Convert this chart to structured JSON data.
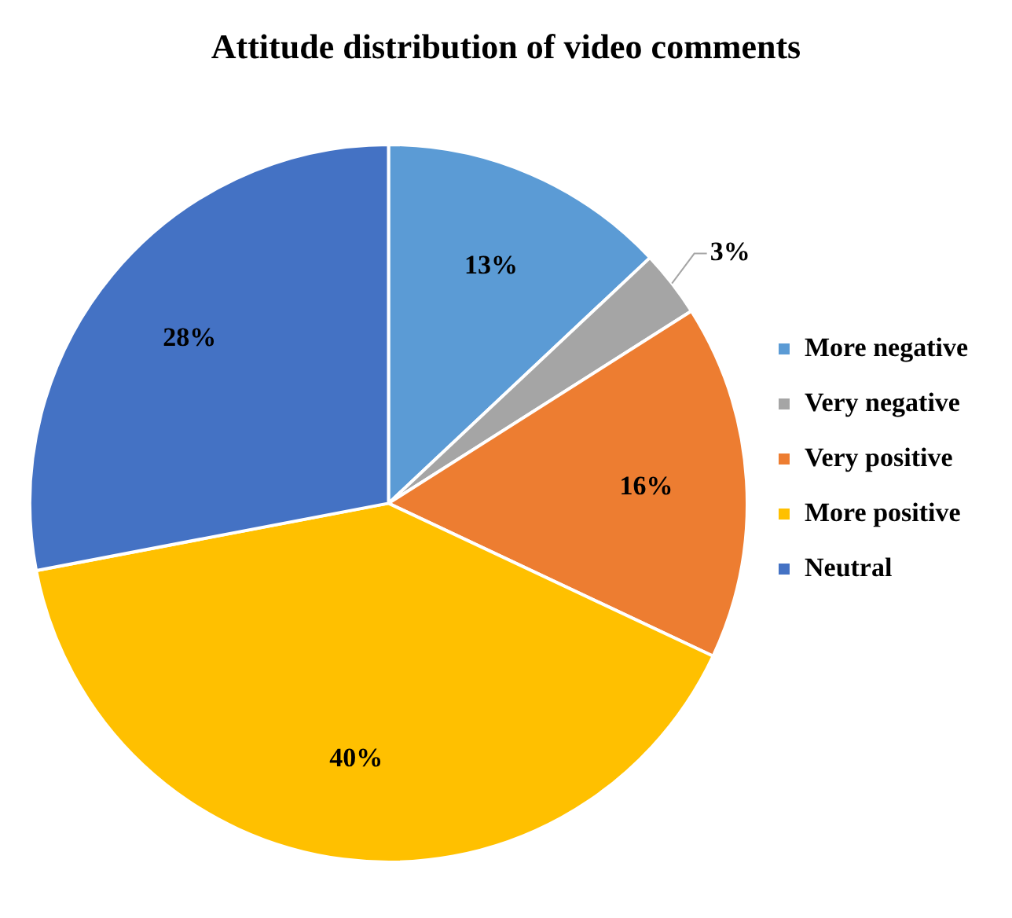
{
  "chart_data": {
    "type": "pie",
    "title": "Attitude distribution of video comments",
    "categories": [
      "More negative",
      "Very negative",
      "Very positive",
      "More positive",
      "Neutral"
    ],
    "values": [
      13,
      3,
      16,
      40,
      28
    ],
    "colors": [
      "#5b9bd5",
      "#a5a5a5",
      "#ed7d31",
      "#ffc000",
      "#4472c4"
    ],
    "value_labels": [
      "13%",
      "3%",
      "16%",
      "40%",
      "28%"
    ],
    "legend": "right"
  }
}
